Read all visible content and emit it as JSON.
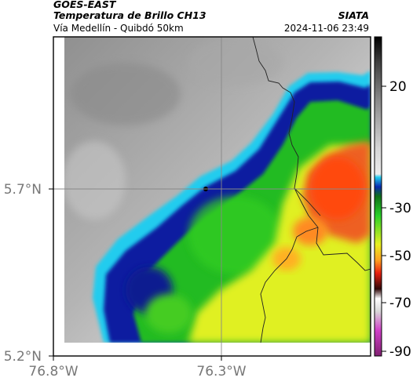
{
  "header": {
    "agency": "GOES-EAST",
    "product": "Temperatura de Brillo CH13",
    "organization": "SIATA",
    "region": "Vía Medellín - Quibdó 50km",
    "datetime": "2024-11-06 23:49"
  },
  "axes": {
    "lat_ticks": [
      "5.7°N",
      "5.2°N"
    ],
    "lon_ticks": [
      "76.8°W",
      "76.3°W"
    ]
  },
  "colorbar": {
    "ticks": [
      "20",
      "-30",
      "-50",
      "-70",
      "-90"
    ],
    "colors": {
      "warm_gray_top": "#303030",
      "gray_mid": "#b0b0b0",
      "cyan": "#00c8e8",
      "blue": "#0a1aa0",
      "green": "#22cc22",
      "yellow": "#e8f020",
      "orange": "#ff8a1a",
      "red": "#e02010",
      "dark": "#300808",
      "magenta": "#c030c0"
    }
  }
}
